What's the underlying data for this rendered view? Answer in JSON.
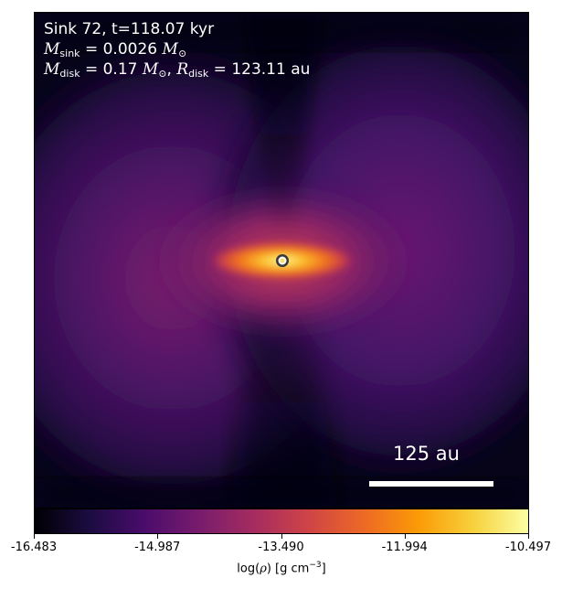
{
  "chart_data": {
    "type": "heatmap",
    "colormap": "inferno",
    "annotation": {
      "sink_line": "Sink 72, t=118.07 kyr",
      "m_sink_label": "M",
      "m_sink_sub": "sink",
      "m_sink_value": " = 0.0026",
      "m_sink_unit": "M",
      "sun_symbol": "⊙",
      "m_disk_label": "M",
      "m_disk_sub": "disk",
      "m_disk_value": " = 0.17",
      "m_disk_unit": "M",
      "r_disk_label": "R",
      "r_disk_sub": "disk",
      "r_disk_value": " = 123.11 au"
    },
    "scale_bar_label": "125 au",
    "colorbar": {
      "label_prefix": "log(",
      "label_rho": "ρ",
      "label_suffix": ") [g cm",
      "label_exp": "−3",
      "label_close": "]",
      "vmin": -16.483,
      "vmax": -10.497,
      "ticks": [
        "-16.483",
        "-14.987",
        "-13.490",
        "-11.994",
        "-10.497"
      ],
      "tick_values": [
        -16.483,
        -14.987,
        -13.49,
        -11.994,
        -10.497
      ]
    },
    "sink_marker_color": "#ffffff",
    "sink_marker_edge": "#3a3a3a"
  }
}
